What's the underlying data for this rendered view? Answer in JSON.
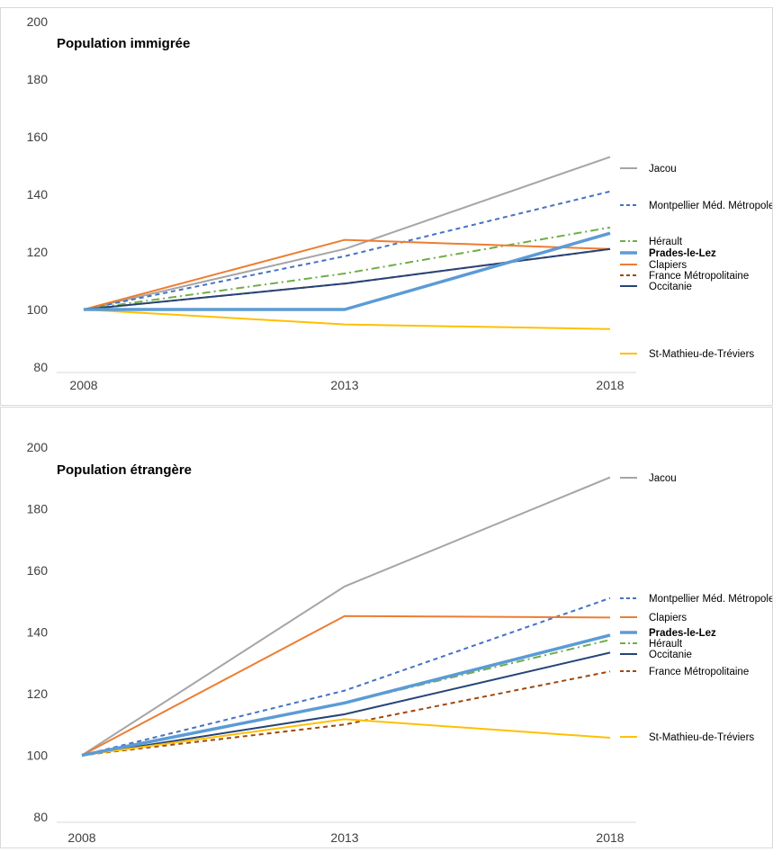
{
  "chart_data": [
    {
      "type": "line",
      "title": "Population immigrée",
      "categories": [
        "2008",
        "2013",
        "2018"
      ],
      "ylim": [
        80,
        200
      ],
      "yticks": [
        80,
        100,
        120,
        140,
        160,
        180,
        200
      ],
      "grid": false,
      "legend_position": "right",
      "series": [
        {
          "name": "Jacou",
          "values": [
            100,
            121,
            153
          ],
          "color": "#a5a5a5",
          "dash": "solid",
          "bold": false
        },
        {
          "name": "Montpellier Méd. Métropole",
          "values": [
            100,
            118.5,
            141
          ],
          "color": "#4472c4",
          "dash": "dash",
          "bold": false
        },
        {
          "name": "Hérault",
          "values": [
            100,
            112.5,
            128.5
          ],
          "color": "#70ad47",
          "dash": "dashdot",
          "bold": false
        },
        {
          "name": "Prades-le-Lez",
          "values": [
            100,
            100,
            126.5
          ],
          "color": "#5b9bd5",
          "dash": "solid",
          "bold": true
        },
        {
          "name": "Clapiers",
          "values": [
            100,
            124.2,
            121
          ],
          "color": "#ed7d31",
          "dash": "solid",
          "bold": false
        },
        {
          "name": "France Métropolitaine",
          "values": [
            100,
            109,
            121
          ],
          "color": "#9e480e",
          "dash": "dash",
          "bold": false
        },
        {
          "name": "Occitanie",
          "values": [
            100,
            109,
            121
          ],
          "color": "#264478",
          "dash": "solid",
          "bold": false
        },
        {
          "name": "St-Mathieu-de-Tréviers",
          "values": [
            100,
            94.8,
            93.2
          ],
          "color": "#ffc000",
          "dash": "solid",
          "bold": false
        }
      ]
    },
    {
      "type": "line",
      "title": "Population étrangère",
      "categories": [
        "2008",
        "2013",
        "2018"
      ],
      "ylim": [
        80,
        200
      ],
      "yticks": [
        80,
        100,
        120,
        140,
        160,
        180,
        200
      ],
      "grid": false,
      "legend_position": "right",
      "series": [
        {
          "name": "Jacou",
          "values": [
            100,
            154.8,
            190.2
          ],
          "color": "#a5a5a5",
          "dash": "solid",
          "bold": false
        },
        {
          "name": "Montpellier Méd. Métropole",
          "values": [
            100,
            121,
            151
          ],
          "color": "#4472c4",
          "dash": "dash",
          "bold": false
        },
        {
          "name": "Clapiers",
          "values": [
            100,
            145.2,
            144.7
          ],
          "color": "#ed7d31",
          "dash": "solid",
          "bold": false
        },
        {
          "name": "Prades-le-Lez",
          "values": [
            100,
            117,
            139
          ],
          "color": "#5b9bd5",
          "dash": "solid",
          "bold": true
        },
        {
          "name": "Hérault",
          "values": [
            100,
            117,
            137.5
          ],
          "color": "#70ad47",
          "dash": "dashdot",
          "bold": false
        },
        {
          "name": "Occitanie",
          "values": [
            100,
            113.3,
            133.3
          ],
          "color": "#264478",
          "dash": "solid",
          "bold": false
        },
        {
          "name": "France Métropolitaine",
          "values": [
            100,
            110,
            127.2
          ],
          "color": "#9e480e",
          "dash": "dash",
          "bold": false
        },
        {
          "name": "St-Mathieu-de-Tréviers",
          "values": [
            100,
            111.7,
            105.7
          ],
          "color": "#ffc000",
          "dash": "solid",
          "bold": false
        }
      ]
    }
  ]
}
